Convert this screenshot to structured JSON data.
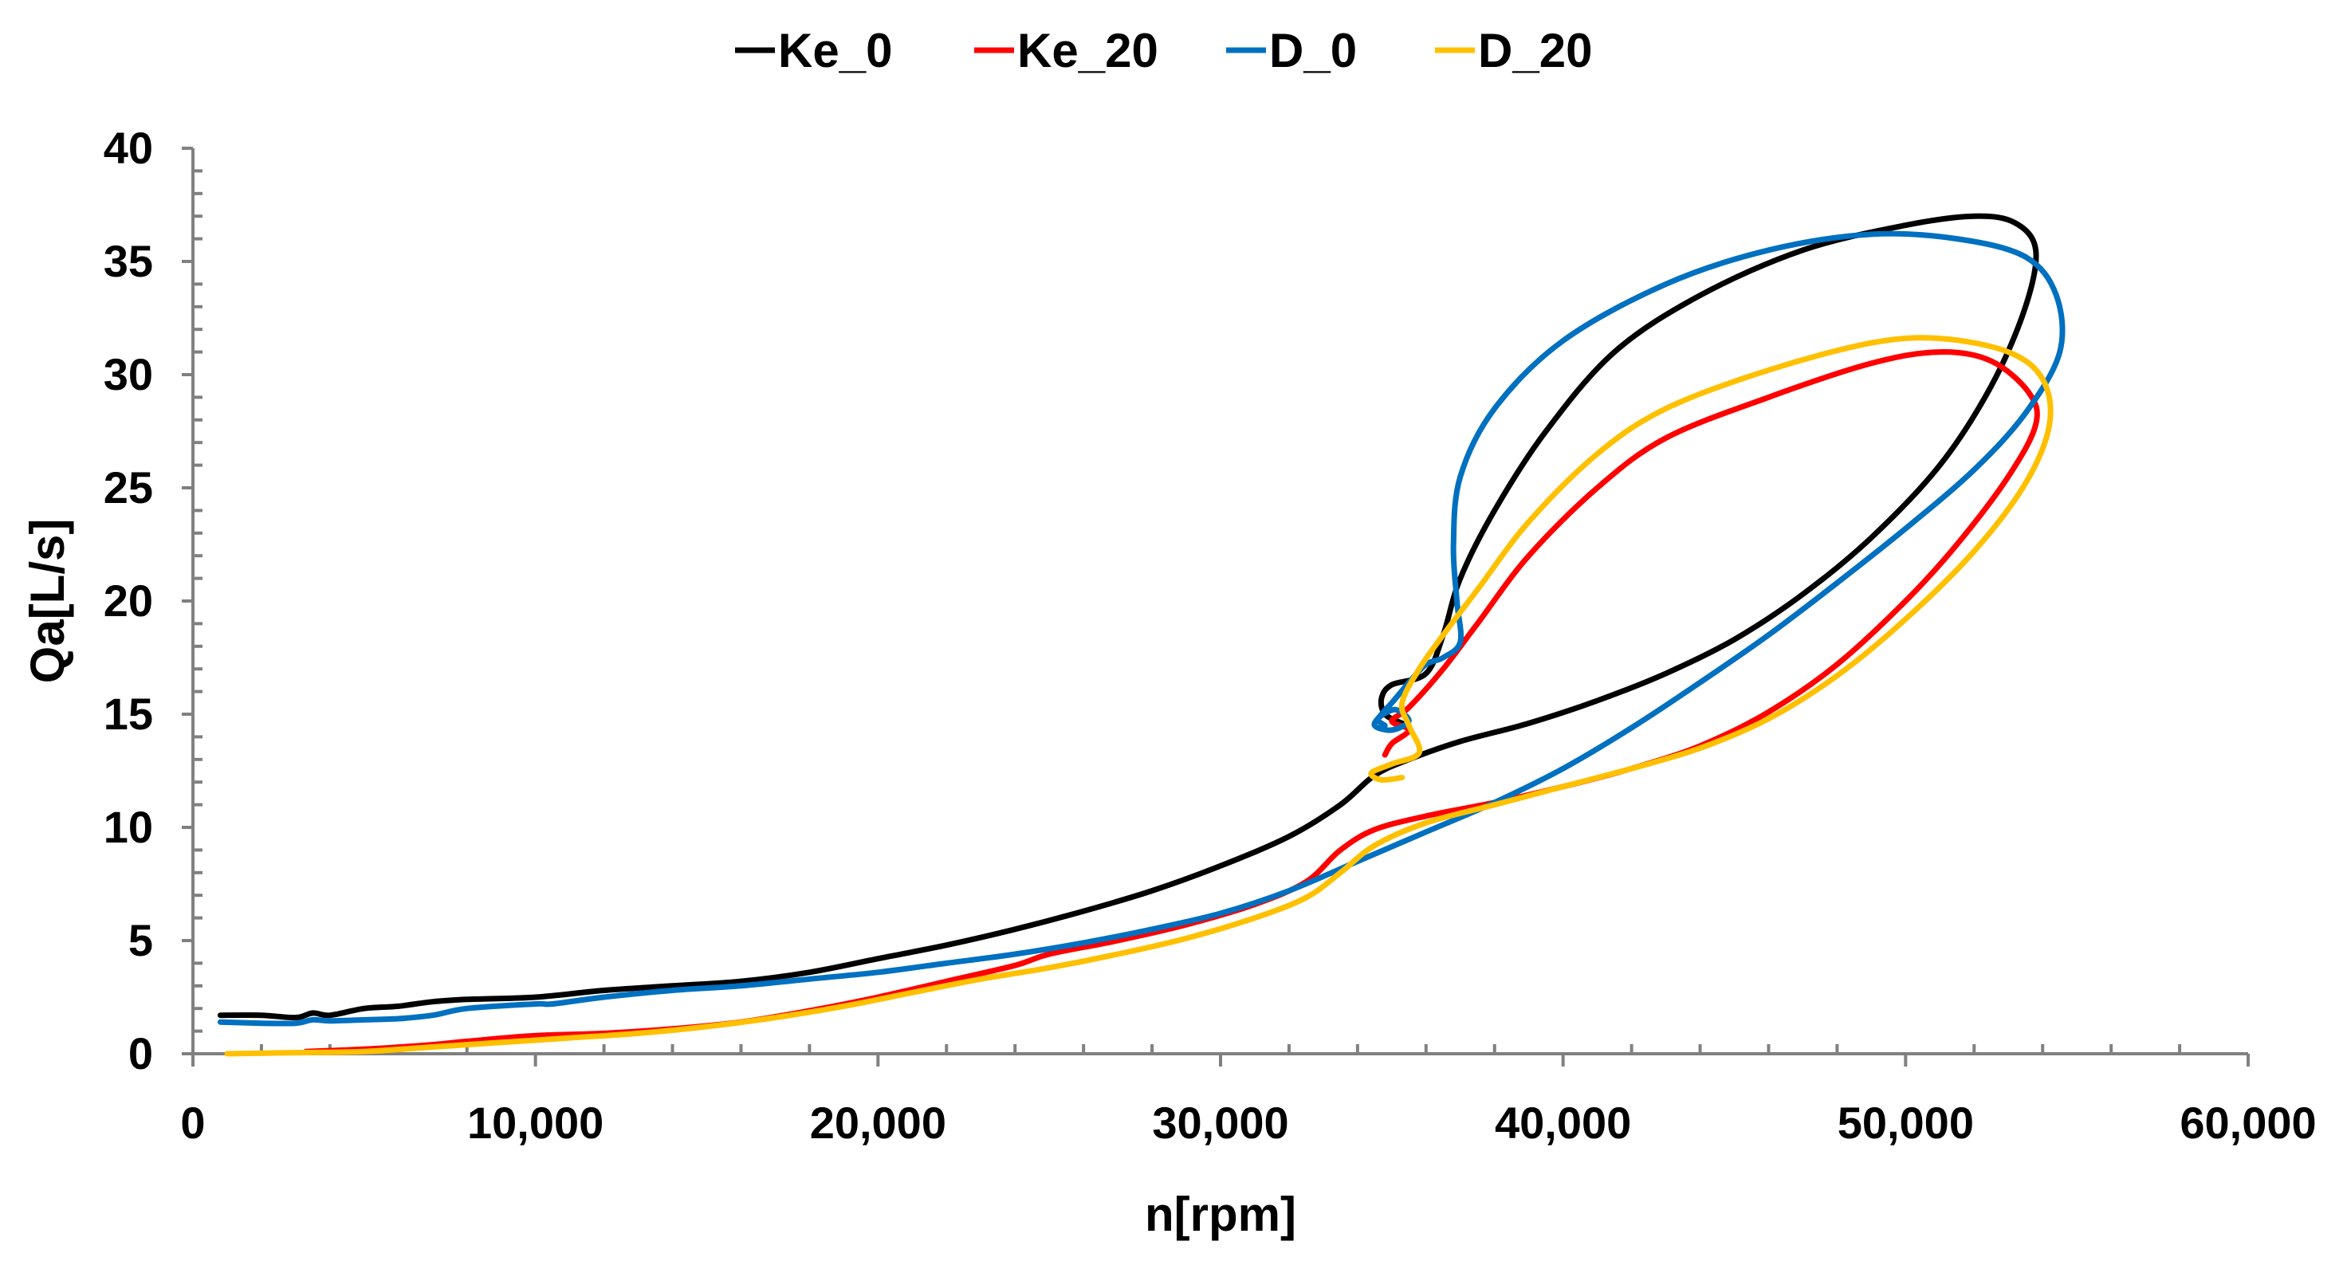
{
  "chart_data": {
    "type": "line",
    "title": "",
    "xlabel": "n[rpm]",
    "ylabel": "Qa[L/s]",
    "xlim": [
      0,
      60000
    ],
    "ylim": [
      0,
      40
    ],
    "x_ticks": [
      0,
      10000,
      20000,
      30000,
      40000,
      50000,
      60000
    ],
    "x_tick_labels": [
      "0",
      "10,000",
      "20,000",
      "30,000",
      "40,000",
      "50,000",
      "60,000"
    ],
    "y_ticks": [
      0,
      5,
      10,
      15,
      20,
      25,
      30,
      35,
      40
    ],
    "y_tick_labels": [
      "0",
      "5",
      "10",
      "15",
      "20",
      "25",
      "30",
      "35",
      "40"
    ],
    "grid": false,
    "legend_position": "top-center",
    "series": [
      {
        "name": "Ke_0",
        "color": "#000000",
        "points": [
          [
            800,
            1.7
          ],
          [
            2000,
            1.7
          ],
          [
            3000,
            1.6
          ],
          [
            3500,
            1.8
          ],
          [
            4000,
            1.7
          ],
          [
            5000,
            2.0
          ],
          [
            6000,
            2.1
          ],
          [
            7000,
            2.3
          ],
          [
            8000,
            2.4
          ],
          [
            10000,
            2.5
          ],
          [
            12000,
            2.8
          ],
          [
            14000,
            3.0
          ],
          [
            16000,
            3.2
          ],
          [
            18000,
            3.6
          ],
          [
            20000,
            4.2
          ],
          [
            22000,
            4.8
          ],
          [
            24000,
            5.5
          ],
          [
            26000,
            6.3
          ],
          [
            28000,
            7.2
          ],
          [
            30000,
            8.3
          ],
          [
            32000,
            9.6
          ],
          [
            33500,
            11.0
          ],
          [
            34500,
            12.3
          ],
          [
            35500,
            13.0
          ],
          [
            37000,
            13.8
          ],
          [
            39000,
            14.6
          ],
          [
            41000,
            15.6
          ],
          [
            43000,
            16.8
          ],
          [
            45000,
            18.3
          ],
          [
            47000,
            20.3
          ],
          [
            49000,
            22.8
          ],
          [
            51000,
            26.0
          ],
          [
            52500,
            29.5
          ],
          [
            53500,
            33.0
          ],
          [
            53800,
            35.5
          ],
          [
            53200,
            36.7
          ],
          [
            52000,
            37.0
          ],
          [
            50000,
            36.6
          ],
          [
            47000,
            35.5
          ],
          [
            44000,
            33.5
          ],
          [
            41500,
            31.0
          ],
          [
            39500,
            27.5
          ],
          [
            38000,
            24.0
          ],
          [
            37000,
            21.0
          ],
          [
            36500,
            18.5
          ],
          [
            36000,
            16.8
          ],
          [
            35000,
            16.3
          ],
          [
            34700,
            15.7
          ],
          [
            34800,
            15.0
          ],
          [
            35300,
            14.6
          ]
        ]
      },
      {
        "name": "Ke_20",
        "color": "#ff0000",
        "points": [
          [
            3300,
            0.1
          ],
          [
            5000,
            0.2
          ],
          [
            7000,
            0.4
          ],
          [
            8000,
            0.55
          ],
          [
            10000,
            0.8
          ],
          [
            12000,
            0.9
          ],
          [
            14000,
            1.1
          ],
          [
            16000,
            1.4
          ],
          [
            18000,
            1.9
          ],
          [
            20000,
            2.5
          ],
          [
            22000,
            3.2
          ],
          [
            24000,
            3.9
          ],
          [
            25000,
            4.4
          ],
          [
            27000,
            5.0
          ],
          [
            29000,
            5.7
          ],
          [
            31000,
            6.6
          ],
          [
            32500,
            7.6
          ],
          [
            33500,
            9.0
          ],
          [
            34500,
            9.9
          ],
          [
            36000,
            10.5
          ],
          [
            38000,
            11.1
          ],
          [
            40000,
            11.8
          ],
          [
            42000,
            12.6
          ],
          [
            44000,
            13.6
          ],
          [
            46000,
            15.1
          ],
          [
            48000,
            17.2
          ],
          [
            50000,
            20.0
          ],
          [
            51500,
            22.5
          ],
          [
            53000,
            25.5
          ],
          [
            53800,
            27.8
          ],
          [
            53600,
            29.2
          ],
          [
            52500,
            30.6
          ],
          [
            51000,
            31.0
          ],
          [
            49000,
            30.5
          ],
          [
            46000,
            29.0
          ],
          [
            43000,
            27.2
          ],
          [
            41000,
            25.0
          ],
          [
            39000,
            22.0
          ],
          [
            37500,
            19.0
          ],
          [
            36500,
            17.0
          ],
          [
            35500,
            15.3
          ],
          [
            35000,
            14.7
          ],
          [
            35500,
            14.3
          ],
          [
            35000,
            13.7
          ],
          [
            34800,
            13.2
          ]
        ]
      },
      {
        "name": "D_0",
        "color": "#0070c0",
        "points": [
          [
            800,
            1.4
          ],
          [
            2000,
            1.35
          ],
          [
            3000,
            1.35
          ],
          [
            3500,
            1.5
          ],
          [
            4000,
            1.45
          ],
          [
            5000,
            1.5
          ],
          [
            6000,
            1.55
          ],
          [
            7000,
            1.7
          ],
          [
            8000,
            2.0
          ],
          [
            10000,
            2.2
          ],
          [
            10500,
            2.2
          ],
          [
            12000,
            2.5
          ],
          [
            14000,
            2.8
          ],
          [
            16000,
            3.0
          ],
          [
            18000,
            3.3
          ],
          [
            20000,
            3.6
          ],
          [
            22000,
            4.0
          ],
          [
            24000,
            4.4
          ],
          [
            26000,
            4.9
          ],
          [
            28000,
            5.5
          ],
          [
            30000,
            6.2
          ],
          [
            32000,
            7.2
          ],
          [
            34000,
            8.5
          ],
          [
            36000,
            9.8
          ],
          [
            38000,
            11.1
          ],
          [
            40000,
            12.6
          ],
          [
            42000,
            14.4
          ],
          [
            44000,
            16.4
          ],
          [
            46000,
            18.5
          ],
          [
            48000,
            20.8
          ],
          [
            50000,
            23.2
          ],
          [
            52000,
            25.8
          ],
          [
            53500,
            28.3
          ],
          [
            54500,
            31.0
          ],
          [
            54400,
            33.5
          ],
          [
            53500,
            35.2
          ],
          [
            51500,
            36.0
          ],
          [
            49000,
            36.2
          ],
          [
            46000,
            35.5
          ],
          [
            43000,
            34.0
          ],
          [
            40000,
            31.5
          ],
          [
            38000,
            28.5
          ],
          [
            37000,
            25.5
          ],
          [
            36800,
            22.5
          ],
          [
            36900,
            20.0
          ],
          [
            37000,
            18.2
          ],
          [
            36500,
            17.5
          ],
          [
            36000,
            17.2
          ],
          [
            35500,
            16.4
          ],
          [
            35000,
            15.5
          ],
          [
            34700,
            15.0
          ],
          [
            34500,
            14.5
          ],
          [
            35000,
            14.3
          ],
          [
            35500,
            14.7
          ],
          [
            35100,
            15.2
          ],
          [
            34600,
            14.8
          ],
          [
            34800,
            14.5
          ]
        ]
      },
      {
        "name": "D_20",
        "color": "#ffc000",
        "points": [
          [
            1000,
            0.0
          ],
          [
            3000,
            0.05
          ],
          [
            5000,
            0.1
          ],
          [
            7000,
            0.3
          ],
          [
            9000,
            0.5
          ],
          [
            11000,
            0.7
          ],
          [
            13000,
            0.9
          ],
          [
            15000,
            1.2
          ],
          [
            17000,
            1.6
          ],
          [
            19000,
            2.1
          ],
          [
            21000,
            2.7
          ],
          [
            23000,
            3.3
          ],
          [
            25000,
            3.8
          ],
          [
            27000,
            4.4
          ],
          [
            29000,
            5.1
          ],
          [
            31000,
            6.0
          ],
          [
            32500,
            6.9
          ],
          [
            33500,
            8.0
          ],
          [
            34500,
            9.2
          ],
          [
            36000,
            10.2
          ],
          [
            38000,
            11.0
          ],
          [
            40000,
            11.8
          ],
          [
            42000,
            12.6
          ],
          [
            44000,
            13.5
          ],
          [
            46000,
            14.8
          ],
          [
            48000,
            16.7
          ],
          [
            50000,
            19.2
          ],
          [
            52000,
            22.2
          ],
          [
            53500,
            25.2
          ],
          [
            54200,
            27.8
          ],
          [
            54000,
            29.8
          ],
          [
            53000,
            31.0
          ],
          [
            51000,
            31.6
          ],
          [
            49000,
            31.4
          ],
          [
            46000,
            30.2
          ],
          [
            43000,
            28.5
          ],
          [
            41000,
            26.5
          ],
          [
            39000,
            23.5
          ],
          [
            37500,
            20.5
          ],
          [
            36500,
            18.5
          ],
          [
            35800,
            17.0
          ],
          [
            35300,
            15.5
          ],
          [
            35500,
            14.5
          ],
          [
            35800,
            13.3
          ],
          [
            35000,
            12.8
          ],
          [
            34400,
            12.4
          ],
          [
            34700,
            12.1
          ],
          [
            35300,
            12.2
          ]
        ]
      }
    ]
  }
}
